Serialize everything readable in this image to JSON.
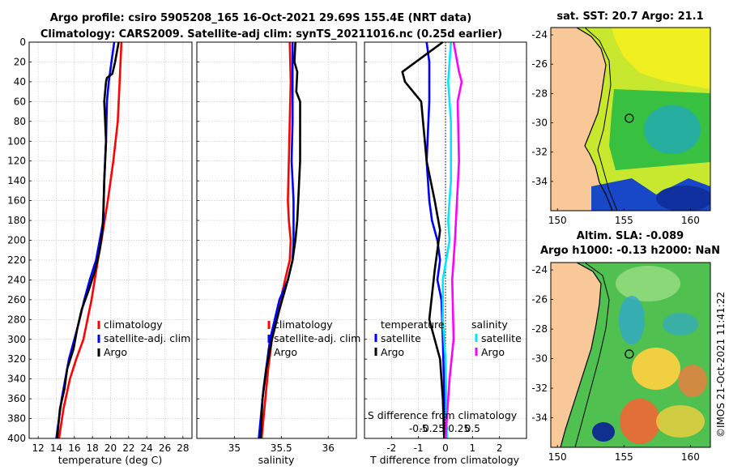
{
  "figure": {
    "title_line1": "Argo profile: csiro 5905208_165 16-Oct-2021 29.69S 155.4E (NRT data)",
    "title_line2": "Climatology: CARS2009. Satellite-adj clim: synTS_20211016.nc (0.25d earlier)",
    "credit": "©IMOS 21-Oct-2021 11:41:22",
    "colors": {
      "climatology": "#ff0000",
      "satellite": "#0000ff",
      "argo": "#000000",
      "sal_satellite": "#00e5ff",
      "sal_argo": "#ff00ff",
      "land": "#f8c898"
    }
  },
  "chart_data": [
    {
      "type": "line",
      "panel": "temperature",
      "xlabel": "temperature (deg C)",
      "ylabel": "",
      "xlim": [
        11,
        29
      ],
      "ylim": [
        400,
        0
      ],
      "xticks": [
        "12",
        "14",
        "16",
        "18",
        "20",
        "22",
        "24",
        "26",
        "28"
      ],
      "xtick_values": [
        12,
        14,
        16,
        18,
        20,
        22,
        24,
        26,
        28
      ],
      "yticks": [
        "0",
        "20",
        "40",
        "60",
        "80",
        "100",
        "120",
        "140",
        "160",
        "180",
        "200",
        "220",
        "240",
        "260",
        "280",
        "300",
        "320",
        "340",
        "360",
        "380",
        "400"
      ],
      "ytick_values": [
        0,
        20,
        40,
        60,
        80,
        100,
        120,
        140,
        160,
        180,
        200,
        220,
        240,
        260,
        280,
        300,
        320,
        340,
        360,
        380,
        400
      ],
      "series": [
        {
          "name": "climatology",
          "color": "#ff0000",
          "x": [
            21.2,
            21.0,
            20.8,
            20.3,
            19.7,
            19.0,
            18.6,
            17.9,
            17.0,
            16.2,
            15.5,
            14.8,
            14.3
          ],
          "y": [
            0,
            40,
            80,
            120,
            160,
            200,
            220,
            260,
            300,
            320,
            340,
            370,
            400
          ]
        },
        {
          "name": "satellite-adj. clim",
          "color": "#0000ff",
          "x": [
            20.4,
            20.1,
            19.8,
            19.6,
            19.5,
            19.3,
            19.2,
            18.8,
            18.4,
            17.7,
            17.1,
            16.3,
            15.4,
            14.6,
            14.0
          ],
          "y": [
            0,
            20,
            40,
            60,
            100,
            140,
            180,
            200,
            220,
            240,
            260,
            290,
            320,
            360,
            400
          ]
        },
        {
          "name": "Argo",
          "color": "#000000",
          "x": [
            20.9,
            20.7,
            20.5,
            20.2,
            19.6,
            19.5,
            19.3,
            19.5,
            19.3,
            19.2,
            19.1,
            18.8,
            18.3,
            17.6,
            16.8,
            16.3,
            15.9,
            15.2,
            14.9,
            14.4,
            14.1
          ],
          "y": [
            0,
            10,
            20,
            32,
            36,
            40,
            60,
            100,
            140,
            170,
            190,
            210,
            230,
            250,
            270,
            290,
            310,
            330,
            350,
            370,
            400
          ]
        }
      ],
      "legend": {
        "placement": "lower-right",
        "labels": [
          "climatology",
          "satellite-adj. clim",
          "Argo"
        ]
      }
    },
    {
      "type": "line",
      "panel": "salinity",
      "xlabel": "salinity",
      "xlim": [
        34.6,
        36.3
      ],
      "ylim": [
        400,
        0
      ],
      "xticks": [
        "35",
        "35.5",
        "36"
      ],
      "xtick_values": [
        35,
        35.5,
        36
      ],
      "series": [
        {
          "name": "climatology",
          "color": "#ff0000",
          "x": [
            35.59,
            35.6,
            35.59,
            35.58,
            35.57,
            35.58,
            35.6,
            35.59,
            35.54,
            35.47,
            35.4,
            35.36,
            35.33,
            35.29
          ],
          "y": [
            0,
            40,
            80,
            120,
            160,
            180,
            200,
            220,
            240,
            270,
            300,
            330,
            360,
            400
          ]
        },
        {
          "name": "satellite-adj. clim",
          "color": "#0000ff",
          "x": [
            35.62,
            35.62,
            35.62,
            35.61,
            35.63,
            35.63,
            35.62,
            35.57,
            35.48,
            35.38,
            35.31,
            35.26
          ],
          "y": [
            0,
            40,
            80,
            120,
            160,
            200,
            220,
            240,
            260,
            300,
            350,
            400
          ]
        },
        {
          "name": "Argo",
          "color": "#000000",
          "x": [
            35.65,
            35.64,
            35.67,
            35.66,
            35.7,
            35.7,
            35.68,
            35.67,
            35.65,
            35.62,
            35.57,
            35.48,
            35.4,
            35.34,
            35.3,
            35.28
          ],
          "y": [
            0,
            20,
            30,
            50,
            60,
            120,
            160,
            180,
            200,
            220,
            240,
            270,
            300,
            330,
            360,
            400
          ]
        }
      ],
      "legend": {
        "placement": "lower-right",
        "labels": [
          "climatology",
          "satellite-adj. clim",
          "Argo"
        ]
      }
    },
    {
      "type": "line",
      "panel": "difference",
      "xlabel": "T difference from climatology",
      "top_label": "S difference from climatology",
      "xlim": [
        -3,
        3
      ],
      "ylim": [
        400,
        0
      ],
      "xticks": [
        "-2",
        "-1",
        "0",
        "1",
        "2"
      ],
      "xtick_values": [
        -2,
        -1,
        0,
        1,
        2
      ],
      "sticks": [
        "-0.5",
        "-0.25",
        "0",
        "0.25",
        "0.5"
      ],
      "stick_values": [
        -0.5,
        -0.25,
        0,
        0.25,
        0.5
      ],
      "series": [
        {
          "name": "temperature satellite",
          "color": "#0000ff",
          "x": [
            -0.7,
            -0.6,
            -0.6,
            -0.7,
            -0.6,
            -0.5,
            -0.3,
            -0.2,
            -0.3,
            -0.15,
            -0.1,
            -0.05,
            -0.05
          ],
          "y": [
            0,
            20,
            60,
            120,
            160,
            180,
            200,
            220,
            240,
            260,
            300,
            350,
            400
          ]
        },
        {
          "name": "temperature Argo",
          "color": "#000000",
          "x": [
            -0.1,
            -0.6,
            -1.6,
            -1.5,
            -0.9,
            -0.7,
            -0.4,
            -0.2,
            -0.4,
            -0.6,
            -0.2,
            -0.1,
            -0.05
          ],
          "y": [
            0,
            10,
            30,
            40,
            60,
            120,
            160,
            190,
            230,
            280,
            320,
            360,
            400
          ]
        },
        {
          "name": "salinity satellite",
          "color": "#00e5ff",
          "x": [
            0.2,
            0.1,
            0.2,
            0.2,
            0.1,
            0.15,
            -0.1,
            -0.1,
            0.0,
            0.05
          ],
          "y": [
            0,
            40,
            80,
            140,
            180,
            200,
            240,
            280,
            320,
            400
          ]
        },
        {
          "name": "salinity Argo",
          "color": "#ff00ff",
          "x": [
            0.3,
            0.5,
            0.6,
            0.45,
            0.5,
            0.35,
            0.25,
            0.3,
            0.15,
            0.0
          ],
          "y": [
            0,
            30,
            40,
            60,
            120,
            200,
            240,
            300,
            340,
            400
          ]
        }
      ],
      "legend": {
        "placement": "lower-center",
        "temperature_title": "temperature",
        "salinity_title": "salinity",
        "labels": [
          "satellite",
          "Argo",
          "satellite",
          "Argo"
        ]
      }
    },
    {
      "type": "heatmap",
      "panel": "sst_map",
      "title": "sat. SST: 20.7 Argo: 21.1",
      "xlim": [
        149.5,
        161.5
      ],
      "ylim": [
        -36,
        -23.5
      ],
      "xticks": [
        "150",
        "155",
        "160"
      ],
      "xtick_values": [
        150,
        155,
        160
      ],
      "yticks": [
        "-24",
        "-26",
        "-28",
        "-30",
        "-32",
        "-34"
      ],
      "ytick_values": [
        -24,
        -26,
        -28,
        -30,
        -32,
        -34
      ],
      "float_position": {
        "lon": 155.4,
        "lat": -29.69
      }
    },
    {
      "type": "heatmap",
      "panel": "sla_map",
      "title": "Altim. SLA: -0.089",
      "title_line2": "Argo h1000: -0.13 h2000: NaN",
      "xlim": [
        149.5,
        161.5
      ],
      "ylim": [
        -36,
        -23.5
      ],
      "xticks": [
        "150",
        "155",
        "160"
      ],
      "xtick_values": [
        150,
        155,
        160
      ],
      "yticks": [
        "-24",
        "-26",
        "-28",
        "-30",
        "-32",
        "-34"
      ],
      "ytick_values": [
        -24,
        -26,
        -28,
        -30,
        -32,
        -34
      ],
      "float_position": {
        "lon": 155.4,
        "lat": -29.69
      }
    }
  ]
}
